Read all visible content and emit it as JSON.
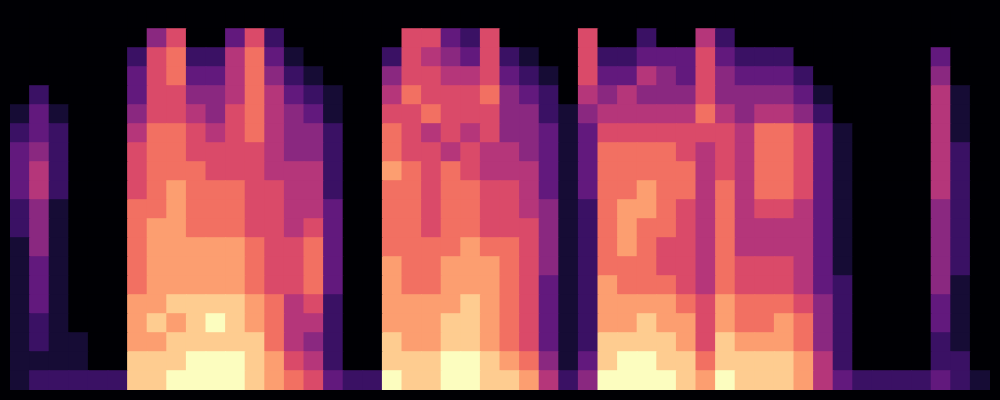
{
  "chart_data": {
    "type": "heatmap",
    "tick_labels": false,
    "grid": false,
    "zlim": [
      0,
      1
    ],
    "cells": [
      [
        0,
        0,
        0,
        0,
        0,
        0,
        0,
        0,
        0,
        0,
        0,
        0,
        0,
        0,
        0,
        0,
        0,
        0,
        0,
        0,
        0,
        0,
        0,
        0,
        0,
        0,
        0,
        0,
        0,
        0,
        0,
        0,
        0,
        0,
        0,
        0,
        0,
        0,
        0,
        0,
        0,
        0,
        0,
        0,
        0,
        0,
        0,
        0,
        0,
        0
      ],
      [
        0,
        0,
        0,
        0,
        0,
        0,
        0,
        0.4,
        0.6,
        0,
        0,
        0.3,
        0.6,
        0.2,
        0,
        0,
        0,
        0,
        0,
        0,
        0.6,
        0.6,
        0.3,
        0.2,
        0.6,
        0,
        0,
        0,
        0,
        0.6,
        0,
        0,
        0.2,
        0,
        0,
        0.5,
        0.2,
        0,
        0,
        0,
        0,
        0,
        0,
        0,
        0,
        0,
        0,
        0,
        0,
        0
      ],
      [
        0,
        0,
        0,
        0,
        0,
        0,
        0.2,
        0.6,
        0.7,
        0.2,
        0.2,
        0.5,
        0.7,
        0.3,
        0.1,
        0,
        0,
        0,
        0,
        0.2,
        0.6,
        0.5,
        0.4,
        0.3,
        0.6,
        0.2,
        0.1,
        0,
        0,
        0.6,
        0.2,
        0.2,
        0.3,
        0.3,
        0.3,
        0.6,
        0.3,
        0.2,
        0.2,
        0.2,
        0,
        0,
        0,
        0,
        0,
        0,
        0,
        0.3,
        0,
        0
      ],
      [
        0,
        0,
        0,
        0,
        0,
        0,
        0.3,
        0.6,
        0.7,
        0.3,
        0.3,
        0.5,
        0.7,
        0.4,
        0.2,
        0.1,
        0,
        0,
        0,
        0.4,
        0.6,
        0.6,
        0.5,
        0.5,
        0.6,
        0.3,
        0.2,
        0.1,
        0,
        0.6,
        0.3,
        0.3,
        0.5,
        0.4,
        0.3,
        0.6,
        0.4,
        0.3,
        0.3,
        0.3,
        0.2,
        0,
        0,
        0,
        0,
        0,
        0,
        0.4,
        0,
        0
      ],
      [
        0,
        0.2,
        0,
        0,
        0,
        0,
        0.3,
        0.6,
        0.6,
        0.4,
        0.4,
        0.5,
        0.7,
        0.5,
        0.3,
        0.2,
        0.1,
        0,
        0,
        0.5,
        0.7,
        0.6,
        0.6,
        0.6,
        0.7,
        0.4,
        0.3,
        0.2,
        0,
        0.5,
        0.4,
        0.5,
        0.4,
        0.4,
        0.4,
        0.6,
        0.4,
        0.4,
        0.4,
        0.4,
        0.3,
        0.1,
        0,
        0,
        0,
        0,
        0,
        0.5,
        0.1,
        0
      ],
      [
        0.1,
        0.3,
        0.1,
        0,
        0,
        0,
        0.4,
        0.6,
        0.6,
        0.5,
        0.4,
        0.6,
        0.7,
        0.5,
        0.4,
        0.3,
        0.1,
        0,
        0,
        0.6,
        0.6,
        0.7,
        0.6,
        0.6,
        0.6,
        0.4,
        0.4,
        0.2,
        0.1,
        0.4,
        0.5,
        0.5,
        0.5,
        0.5,
        0.5,
        0.7,
        0.5,
        0.4,
        0.5,
        0.5,
        0.4,
        0.2,
        0,
        0,
        0,
        0,
        0,
        0.5,
        0.1,
        0
      ],
      [
        0.2,
        0.3,
        0.2,
        0,
        0,
        0,
        0.5,
        0.7,
        0.7,
        0.6,
        0.5,
        0.6,
        0.7,
        0.5,
        0.4,
        0.4,
        0.2,
        0,
        0,
        0.7,
        0.6,
        0.5,
        0.6,
        0.5,
        0.6,
        0.4,
        0.4,
        0.3,
        0.1,
        0.3,
        0.6,
        0.6,
        0.6,
        0.6,
        0.6,
        0.6,
        0.6,
        0.5,
        0.7,
        0.7,
        0.6,
        0.3,
        0.1,
        0,
        0,
        0,
        0,
        0.5,
        0.1,
        0
      ],
      [
        0.3,
        0.4,
        0.2,
        0,
        0,
        0,
        0.6,
        0.7,
        0.7,
        0.6,
        0.6,
        0.6,
        0.6,
        0.5,
        0.4,
        0.4,
        0.2,
        0,
        0,
        0.7,
        0.6,
        0.6,
        0.5,
        0.6,
        0.5,
        0.5,
        0.4,
        0.3,
        0.1,
        0.3,
        0.7,
        0.7,
        0.7,
        0.7,
        0.6,
        0.5,
        0.6,
        0.5,
        0.7,
        0.7,
        0.6,
        0.3,
        0.1,
        0,
        0,
        0,
        0,
        0.5,
        0.2,
        0
      ],
      [
        0.3,
        0.5,
        0.2,
        0,
        0,
        0,
        0.6,
        0.7,
        0.7,
        0.7,
        0.6,
        0.6,
        0.6,
        0.5,
        0.5,
        0.5,
        0.2,
        0,
        0,
        0.8,
        0.7,
        0.6,
        0.7,
        0.6,
        0.5,
        0.5,
        0.5,
        0.3,
        0.1,
        0.3,
        0.7,
        0.7,
        0.7,
        0.7,
        0.7,
        0.5,
        0.6,
        0.5,
        0.7,
        0.7,
        0.6,
        0.3,
        0.1,
        0,
        0,
        0,
        0,
        0.5,
        0.2,
        0
      ],
      [
        0.3,
        0.5,
        0.2,
        0,
        0,
        0,
        0.6,
        0.7,
        0.8,
        0.7,
        0.7,
        0.7,
        0.6,
        0.6,
        0.5,
        0.5,
        0.2,
        0,
        0,
        0.7,
        0.7,
        0.6,
        0.7,
        0.7,
        0.6,
        0.6,
        0.5,
        0.3,
        0.1,
        0.3,
        0.7,
        0.7,
        0.8,
        0.7,
        0.7,
        0.5,
        0.7,
        0.5,
        0.7,
        0.7,
        0.6,
        0.3,
        0.1,
        0,
        0,
        0,
        0,
        0.5,
        0.2,
        0
      ],
      [
        0.2,
        0.4,
        0.1,
        0,
        0,
        0,
        0.7,
        0.7,
        0.8,
        0.7,
        0.7,
        0.7,
        0.6,
        0.6,
        0.5,
        0.5,
        0.3,
        0,
        0,
        0.7,
        0.7,
        0.6,
        0.7,
        0.7,
        0.6,
        0.6,
        0.5,
        0.4,
        0.1,
        0.2,
        0.7,
        0.8,
        0.8,
        0.7,
        0.6,
        0.5,
        0.7,
        0.5,
        0.6,
        0.6,
        0.5,
        0.3,
        0.1,
        0,
        0,
        0,
        0,
        0.4,
        0.2,
        0
      ],
      [
        0.2,
        0.4,
        0.1,
        0,
        0,
        0,
        0.7,
        0.8,
        0.8,
        0.7,
        0.7,
        0.7,
        0.6,
        0.6,
        0.5,
        0.6,
        0.3,
        0,
        0,
        0.7,
        0.7,
        0.6,
        0.7,
        0.7,
        0.6,
        0.6,
        0.6,
        0.4,
        0.1,
        0.2,
        0.7,
        0.8,
        0.7,
        0.7,
        0.6,
        0.5,
        0.7,
        0.5,
        0.5,
        0.5,
        0.5,
        0.3,
        0.1,
        0,
        0,
        0,
        0,
        0.4,
        0.2,
        0
      ],
      [
        0.1,
        0.4,
        0.1,
        0,
        0,
        0,
        0.7,
        0.8,
        0.8,
        0.8,
        0.8,
        0.8,
        0.7,
        0.6,
        0.6,
        0.7,
        0.3,
        0,
        0,
        0.7,
        0.7,
        0.7,
        0.7,
        0.8,
        0.7,
        0.7,
        0.6,
        0.4,
        0.1,
        0.2,
        0.7,
        0.8,
        0.7,
        0.6,
        0.6,
        0.5,
        0.7,
        0.5,
        0.5,
        0.5,
        0.5,
        0.3,
        0.1,
        0,
        0,
        0,
        0,
        0.4,
        0.2,
        0
      ],
      [
        0.1,
        0.3,
        0.1,
        0,
        0,
        0,
        0.7,
        0.8,
        0.8,
        0.8,
        0.8,
        0.8,
        0.7,
        0.6,
        0.6,
        0.7,
        0.3,
        0,
        0,
        0.8,
        0.7,
        0.7,
        0.8,
        0.8,
        0.8,
        0.7,
        0.6,
        0.4,
        0.1,
        0.2,
        0.7,
        0.7,
        0.7,
        0.6,
        0.6,
        0.5,
        0.7,
        0.6,
        0.6,
        0.6,
        0.5,
        0.3,
        0.1,
        0,
        0,
        0,
        0,
        0.4,
        0.2,
        0
      ],
      [
        0.1,
        0.3,
        0.1,
        0,
        0,
        0,
        0.7,
        0.8,
        0.8,
        0.8,
        0.8,
        0.8,
        0.7,
        0.6,
        0.6,
        0.7,
        0.3,
        0,
        0,
        0.8,
        0.7,
        0.7,
        0.8,
        0.8,
        0.8,
        0.7,
        0.6,
        0.3,
        0.1,
        0.2,
        0.8,
        0.7,
        0.7,
        0.7,
        0.6,
        0.5,
        0.7,
        0.6,
        0.6,
        0.6,
        0.5,
        0.3,
        0.2,
        0,
        0,
        0,
        0,
        0.4,
        0.1,
        0
      ],
      [
        0.1,
        0.3,
        0.1,
        0,
        0,
        0,
        0.8,
        0.8,
        0.9,
        0.9,
        0.9,
        0.9,
        0.8,
        0.7,
        0.5,
        0.6,
        0.2,
        0,
        0,
        0.8,
        0.8,
        0.8,
        0.8,
        0.9,
        0.8,
        0.7,
        0.6,
        0.3,
        0.1,
        0.2,
        0.8,
        0.8,
        0.8,
        0.8,
        0.7,
        0.6,
        0.8,
        0.7,
        0.7,
        0.7,
        0.6,
        0.4,
        0.2,
        0,
        0,
        0,
        0,
        0.3,
        0.1,
        0
      ],
      [
        0.1,
        0.2,
        0.1,
        0,
        0,
        0,
        0.8,
        0.9,
        0.8,
        0.9,
        1,
        0.9,
        0.8,
        0.7,
        0.5,
        0.5,
        0.2,
        0,
        0,
        0.8,
        0.8,
        0.8,
        0.9,
        0.9,
        0.8,
        0.7,
        0.6,
        0.3,
        0.1,
        0.2,
        0.8,
        0.8,
        0.9,
        0.8,
        0.8,
        0.6,
        0.8,
        0.7,
        0.7,
        0.8,
        0.7,
        0.4,
        0.2,
        0,
        0,
        0,
        0,
        0.3,
        0.1,
        0
      ],
      [
        0.1,
        0.2,
        0.1,
        0.1,
        0,
        0,
        0.8,
        0.8,
        0.9,
        0.9,
        0.9,
        0.9,
        0.9,
        0.7,
        0.5,
        0.4,
        0.2,
        0,
        0,
        0.9,
        0.8,
        0.8,
        0.9,
        0.9,
        0.8,
        0.7,
        0.6,
        0.3,
        0.1,
        0.2,
        0.9,
        0.9,
        0.9,
        0.9,
        0.8,
        0.6,
        0.9,
        0.8,
        0.8,
        0.8,
        0.7,
        0.4,
        0.2,
        0,
        0,
        0,
        0,
        0.2,
        0.1,
        0
      ],
      [
        0.1,
        0.1,
        0.1,
        0.1,
        0,
        0,
        0.9,
        0.9,
        0.9,
        1,
        1,
        1,
        0.9,
        0.8,
        0.6,
        0.5,
        0.2,
        0,
        0,
        0.9,
        0.9,
        0.9,
        1,
        1,
        0.9,
        0.8,
        0.7,
        0.4,
        0.1,
        0.3,
        0.9,
        1,
        1,
        0.9,
        0.9,
        0.7,
        0.9,
        0.9,
        0.9,
        0.9,
        0.8,
        0.5,
        0.2,
        0,
        0,
        0,
        0,
        0.2,
        0.2,
        0
      ],
      [
        0.1,
        0.2,
        0.2,
        0.2,
        0.2,
        0.2,
        0.9,
        0.9,
        1,
        1,
        1,
        1,
        0.9,
        0.8,
        0.7,
        0.6,
        0.3,
        0.2,
        0.2,
        1,
        0.9,
        0.9,
        1,
        1,
        0.9,
        0.9,
        0.8,
        0.5,
        0.2,
        0.4,
        1,
        1,
        1,
        1,
        0.9,
        0.8,
        1,
        0.9,
        0.9,
        0.9,
        0.8,
        0.5,
        0.3,
        0.2,
        0.2,
        0.2,
        0.2,
        0.3,
        0.2,
        0.1
      ]
    ]
  }
}
